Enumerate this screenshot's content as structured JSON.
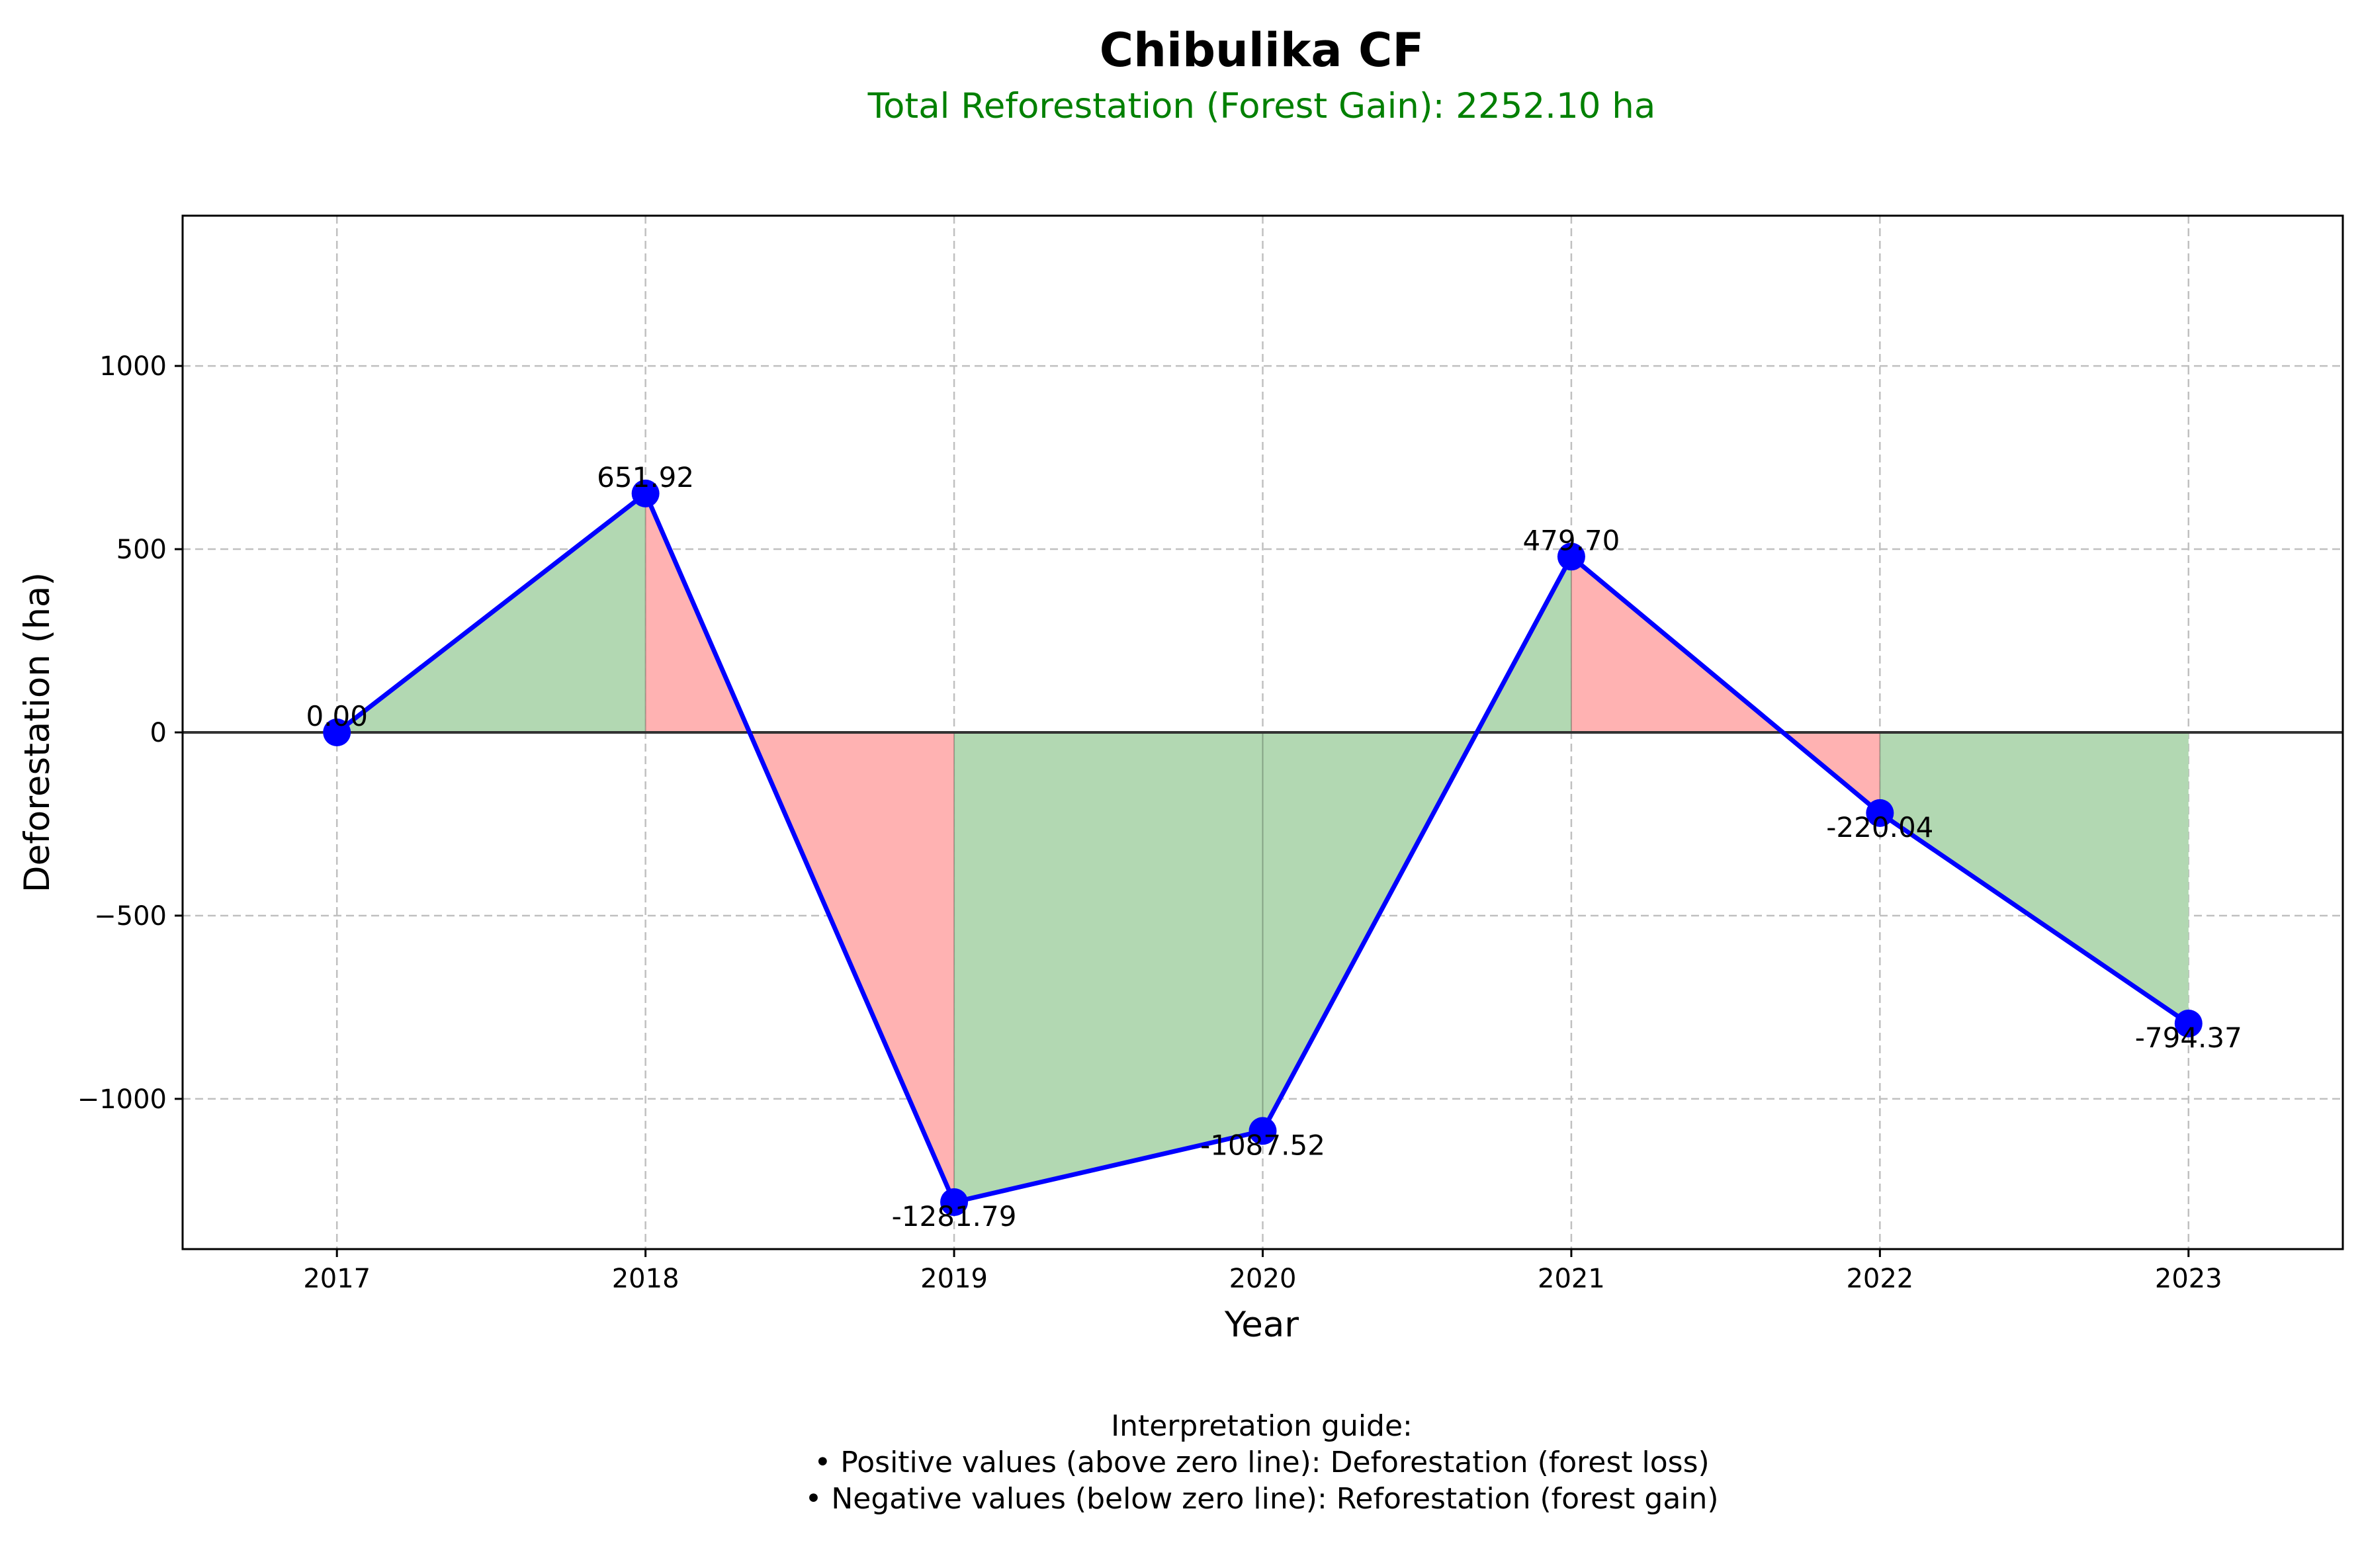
{
  "chart_data": {
    "type": "line",
    "title": "Chibulika CF",
    "subtitle": "Total Reforestation (Forest Gain): 2252.10 ha",
    "xlabel": "Year",
    "ylabel": "Deforestation (ha)",
    "categories": [
      "2017",
      "2018",
      "2019",
      "2020",
      "2021",
      "2022",
      "2023"
    ],
    "values": [
      0.0,
      651.92,
      -1281.79,
      -1087.52,
      479.7,
      -220.04,
      -794.37
    ],
    "data_labels": [
      "0.00",
      "651.92",
      "-1281.79",
      "-1087.52",
      "479.70",
      "-220.04",
      "-794.37"
    ],
    "segment_fill": [
      "gain",
      "loss",
      "gain",
      "gain",
      "loss",
      "gain"
    ],
    "ylim": [
      -1410,
      1410
    ],
    "yticks": [
      1000,
      500,
      0,
      -500,
      -1000
    ],
    "ytick_labels": [
      "1000",
      "500",
      "0",
      "−500",
      "−1000"
    ],
    "grid": true,
    "zero_line": true,
    "colors": {
      "line": "#0000ff",
      "marker": "#0000ff",
      "gain_fill": "#b2d8b2",
      "loss_fill": "#ffb2b2",
      "subtitle": "#008000",
      "grid": "#c0c0c0",
      "zero_line": "#333333"
    }
  },
  "notes": {
    "heading": "Interpretation guide:",
    "line1": "• Positive values (above zero line): Deforestation (forest loss)",
    "line2": "• Negative values (below zero line): Reforestation (forest gain)"
  }
}
